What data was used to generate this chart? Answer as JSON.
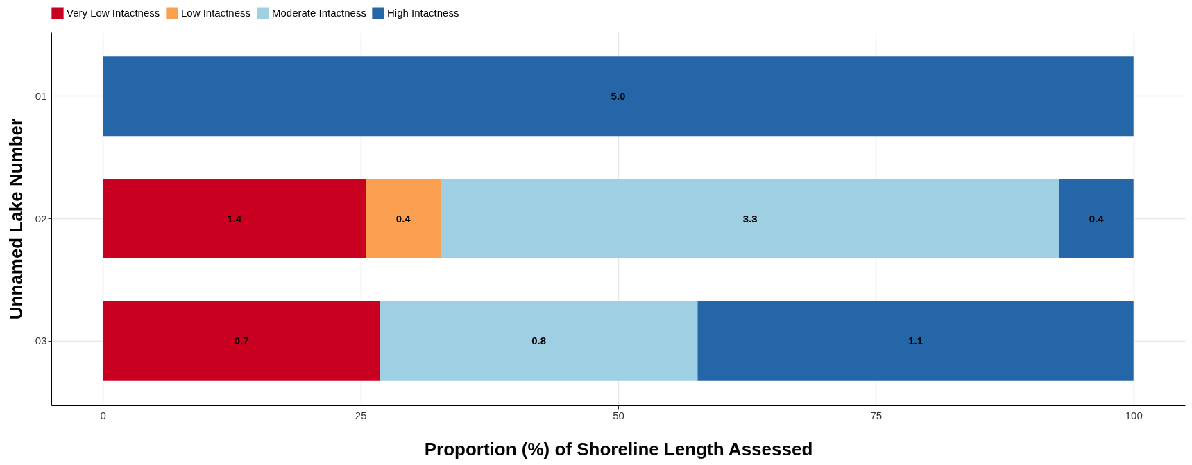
{
  "chart_data": {
    "type": "bar",
    "orientation": "horizontal",
    "stacked": true,
    "categories": [
      "01",
      "02",
      "03"
    ],
    "series": [
      {
        "name": "Very Low Intactness",
        "color": "#ca0020",
        "values": [
          null,
          25.5,
          26.9
        ]
      },
      {
        "name": "Low Intactness",
        "color": "#fb9f50",
        "values": [
          null,
          7.3,
          null
        ]
      },
      {
        "name": "Moderate Intactness",
        "color": "#9ecfe2",
        "values": [
          null,
          60.0,
          30.8
        ]
      },
      {
        "name": "High Intactness",
        "color": "#2566a8",
        "values": [
          100,
          7.2,
          42.3
        ]
      }
    ],
    "annotations": [
      "5.0",
      "1.4",
      "0.4",
      "3.3",
      "0.4",
      "0.7",
      "0.8",
      "1.1"
    ],
    "xlim": [
      -5,
      105
    ],
    "xticks": [
      0,
      25,
      50,
      75,
      100
    ],
    "xlabel": "Proportion (%) of Shoreline Length Assessed",
    "ylabel": "Unnamed Lake Number",
    "grid": true,
    "legend": "top"
  }
}
